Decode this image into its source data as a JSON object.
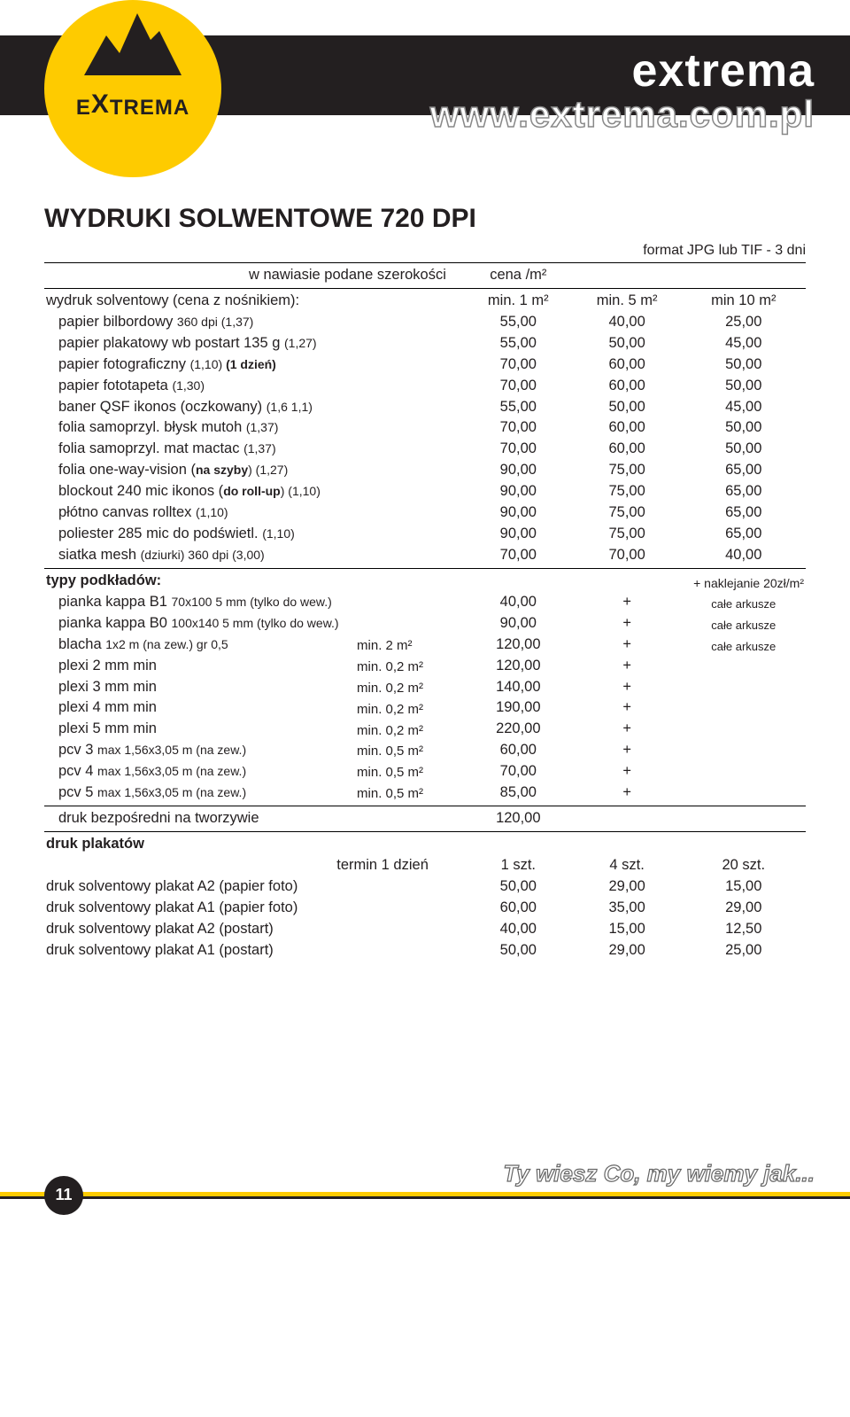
{
  "brand": "extrema",
  "url": "www.extrema.com.pl",
  "logo_label": "EXTREMA",
  "page_title": "WYDRUKI SOLWENTOWE 720 DPI",
  "format_note": "format JPG lub TIF - 3 dni",
  "subheader_left": "w nawiasie podane szerokości",
  "subheader_unit": "cena /m²",
  "main": {
    "label": "wydruk solventowy (cena z nośnikiem):",
    "c1": "min. 1 m²",
    "c2": "min. 5 m²",
    "c3": "min 10 m²"
  },
  "rows": [
    {
      "l": "papier bilbordowy ",
      "p": "360 dpi (1,37)",
      "v1": "55,00",
      "v2": "40,00",
      "v3": "25,00"
    },
    {
      "l": "papier plakatowy wb postart 135 g ",
      "p": "(1,27)",
      "v1": "55,00",
      "v2": "50,00",
      "v3": "45,00"
    },
    {
      "l": "papier fotograficzny ",
      "p": "(1,10) ",
      "pb": "(1 dzień)",
      "v1": "70,00",
      "v2": "60,00",
      "v3": "50,00"
    },
    {
      "l": "papier fototapeta ",
      "p": "(1,30)",
      "v1": "70,00",
      "v2": "60,00",
      "v3": "50,00"
    },
    {
      "l": "baner QSF ikonos (oczkowany) ",
      "p": "(1,6 1,1)",
      "v1": "55,00",
      "v2": "50,00",
      "v3": "45,00"
    },
    {
      "l": "folia samoprzyl. błysk mutoh ",
      "p": "(1,37)",
      "v1": "70,00",
      "v2": "60,00",
      "v3": "50,00"
    },
    {
      "l": "folia samoprzyl. mat mactac ",
      "p": "(1,37)",
      "v1": "70,00",
      "v2": "60,00",
      "v3": "50,00"
    },
    {
      "l": "folia one-way-vision (",
      "pb": "na szyby",
      "p2": ") (1,27)",
      "v1": "90,00",
      "v2": "75,00",
      "v3": "65,00"
    },
    {
      "l": "blockout 240 mic ikonos (",
      "pb": "do roll-up",
      "p2": ") (1,10)",
      "v1": "90,00",
      "v2": "75,00",
      "v3": "65,00"
    },
    {
      "l": "płótno canvas rolltex ",
      "p": "(1,10)",
      "v1": "90,00",
      "v2": "75,00",
      "v3": "65,00"
    },
    {
      "l": "poliester 285 mic do podświetl. ",
      "p": "(1,10)",
      "v1": "90,00",
      "v2": "75,00",
      "v3": "65,00"
    },
    {
      "l": "siatka mesh ",
      "p": "(dziurki) 360 dpi (3,00)",
      "v1": "70,00",
      "v2": "70,00",
      "v3": "40,00"
    }
  ],
  "podklad": {
    "header": "typy podkładów:",
    "note": "+ naklejanie 20zł/m²",
    "rows": [
      {
        "l": "pianka kappa B1 ",
        "p": "70x100 5 mm (tylko do wew.)",
        "sub": "",
        "v1": "40,00",
        "v2": "+",
        "v3": "całe arkusze"
      },
      {
        "l": "pianka kappa B0 ",
        "p": "100x140 5 mm (tylko do wew.)",
        "sub": "",
        "v1": "90,00",
        "v2": "+",
        "v3": "całe arkusze"
      },
      {
        "l": "blacha ",
        "p": "1x2 m (na zew.) gr 0,5",
        "sub": "min. 2 m²",
        "v1": "120,00",
        "v2": "+",
        "v3": "całe arkusze"
      },
      {
        "l": "plexi 2 mm min",
        "p": "",
        "sub": "min. 0,2 m²",
        "v1": "120,00",
        "v2": "+",
        "v3": ""
      },
      {
        "l": "plexi 3 mm min",
        "p": "",
        "sub": "min. 0,2 m²",
        "v1": "140,00",
        "v2": "+",
        "v3": ""
      },
      {
        "l": "plexi 4 mm min",
        "p": "",
        "sub": "min. 0,2 m²",
        "v1": "190,00",
        "v2": "+",
        "v3": ""
      },
      {
        "l": "plexi 5 mm min",
        "p": "",
        "sub": "min. 0,2 m²",
        "v1": "220,00",
        "v2": "+",
        "v3": ""
      },
      {
        "l": "pcv 3 ",
        "p": "max 1,56x3,05 m (na zew.)",
        "sub": "min. 0,5 m²",
        "v1": "60,00",
        "v2": "+",
        "v3": ""
      },
      {
        "l": "pcv 4 ",
        "p": "max 1,56x3,05 m (na zew.)",
        "sub": "min. 0,5 m²",
        "v1": "70,00",
        "v2": "+",
        "v3": ""
      },
      {
        "l": "pcv 5 ",
        "p": "max 1,56x3,05 m (na zew.)",
        "sub": "min. 0,5 m²",
        "v1": "85,00",
        "v2": "+",
        "v3": ""
      }
    ],
    "last": {
      "l": "druk bezpośredni na tworzywie",
      "v1": "120,00"
    }
  },
  "plakaty": {
    "header": "druk plakatów",
    "sub": "termin 1 dzień",
    "c1": "1 szt.",
    "c2": "4 szt.",
    "c3": "20 szt.",
    "rows": [
      {
        "l": "druk solventowy plakat A2 (papier foto)",
        "v1": "50,00",
        "v2": "29,00",
        "v3": "15,00"
      },
      {
        "l": "druk solventowy plakat A1 (papier foto)",
        "v1": "60,00",
        "v2": "35,00",
        "v3": "29,00"
      },
      {
        "l": "druk solventowy plakat A2 (postart)",
        "v1": "40,00",
        "v2": "15,00",
        "v3": "12,50"
      },
      {
        "l": "druk solventowy plakat A1 (postart)",
        "v1": "50,00",
        "v2": "29,00",
        "v3": "25,00"
      }
    ]
  },
  "page_number": "11",
  "slogan": "Ty wiesz Co, my wiemy jak..."
}
